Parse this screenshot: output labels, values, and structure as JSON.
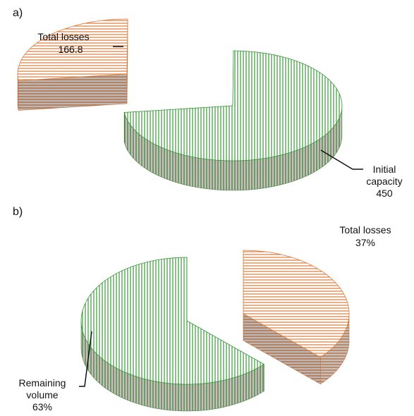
{
  "chart_data": [
    {
      "type": "pie",
      "title": "a)",
      "categories": [
        "Total losses",
        "Initial capacity"
      ],
      "values": [
        166.8,
        450
      ],
      "colors": [
        "#e07b39",
        "#3a9a3a"
      ]
    },
    {
      "type": "pie",
      "title": "b)",
      "categories": [
        "Total losses",
        "Remaining volume"
      ],
      "values": [
        37,
        63
      ],
      "value_labels": [
        "37%",
        "63%"
      ],
      "colors": [
        "#e07b39",
        "#3a9a3a"
      ]
    }
  ]
}
